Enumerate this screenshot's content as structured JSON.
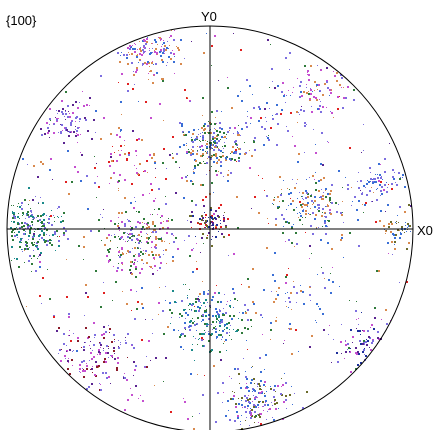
{
  "chart_data": {
    "type": "scatter",
    "title": "{100}",
    "axis_labels": {
      "x": "X0",
      "y": "Y0"
    },
    "xlim": [
      -1,
      1
    ],
    "ylim": [
      -1,
      1
    ],
    "boundary": "unit-circle",
    "grid": false,
    "colors": {
      "blue": "#3a6fd6",
      "orange": "#d88a4f",
      "magenta": "#c54fd0",
      "violet": "#7d6fe0",
      "green": "#2f7a3a",
      "olive": "#6b6b2a",
      "purple": "#5a2490",
      "darkblue": "#1d2f9a",
      "maroon": "#8a1a2a",
      "red": "#e02020",
      "teal": "#1a8a8a"
    },
    "clusters": [
      {
        "x": -0.3,
        "y": 0.88,
        "spread": 0.08,
        "count": 180,
        "colors": [
          "blue",
          "orange",
          "magenta",
          "violet"
        ]
      },
      {
        "x": 0.0,
        "y": 0.4,
        "spread": 0.09,
        "count": 260,
        "colors": [
          "green",
          "blue",
          "violet",
          "orange"
        ]
      },
      {
        "x": -0.72,
        "y": 0.52,
        "spread": 0.06,
        "count": 90,
        "colors": [
          "purple",
          "magenta",
          "violet"
        ]
      },
      {
        "x": 0.52,
        "y": 0.7,
        "spread": 0.09,
        "count": 80,
        "colors": [
          "magenta",
          "violet",
          "orange"
        ]
      },
      {
        "x": 0.48,
        "y": 0.12,
        "spread": 0.1,
        "count": 180,
        "colors": [
          "orange",
          "violet",
          "blue",
          "green"
        ]
      },
      {
        "x": 0.83,
        "y": 0.22,
        "spread": 0.06,
        "count": 70,
        "colors": [
          "blue",
          "violet"
        ]
      },
      {
        "x": 0.93,
        "y": 0.0,
        "spread": 0.05,
        "count": 60,
        "colors": [
          "blue",
          "olive",
          "orange"
        ]
      },
      {
        "x": -0.9,
        "y": 0.0,
        "spread": 0.09,
        "count": 260,
        "colors": [
          "green",
          "teal",
          "violet"
        ]
      },
      {
        "x": -0.36,
        "y": -0.05,
        "spread": 0.1,
        "count": 240,
        "colors": [
          "orange",
          "magenta",
          "violet",
          "green"
        ]
      },
      {
        "x": 0.0,
        "y": 0.04,
        "spread": 0.05,
        "count": 90,
        "colors": [
          "darkblue",
          "purple",
          "red",
          "olive"
        ]
      },
      {
        "x": 0.0,
        "y": -0.45,
        "spread": 0.09,
        "count": 230,
        "colors": [
          "blue",
          "green",
          "violet",
          "teal"
        ]
      },
      {
        "x": 0.75,
        "y": -0.55,
        "spread": 0.07,
        "count": 90,
        "colors": [
          "darkblue",
          "purple",
          "magenta",
          "violet"
        ]
      },
      {
        "x": -0.57,
        "y": -0.62,
        "spread": 0.11,
        "count": 170,
        "colors": [
          "magenta",
          "purple",
          "violet",
          "maroon"
        ]
      },
      {
        "x": 0.23,
        "y": -0.85,
        "spread": 0.08,
        "count": 180,
        "colors": [
          "olive",
          "magenta",
          "violet",
          "blue"
        ]
      },
      {
        "x": -0.4,
        "y": 0.35,
        "spread": 0.1,
        "count": 60,
        "colors": [
          "orange",
          "red",
          "magenta"
        ]
      },
      {
        "x": 0.4,
        "y": -0.35,
        "spread": 0.12,
        "count": 60,
        "colors": [
          "blue",
          "violet",
          "orange"
        ]
      },
      {
        "x": 0.3,
        "y": 0.55,
        "spread": 0.12,
        "count": 50,
        "colors": [
          "blue",
          "violet"
        ]
      }
    ],
    "background_scatter": {
      "count": 380,
      "colors": [
        "blue",
        "violet",
        "magenta",
        "orange",
        "green",
        "purple",
        "red"
      ]
    }
  }
}
